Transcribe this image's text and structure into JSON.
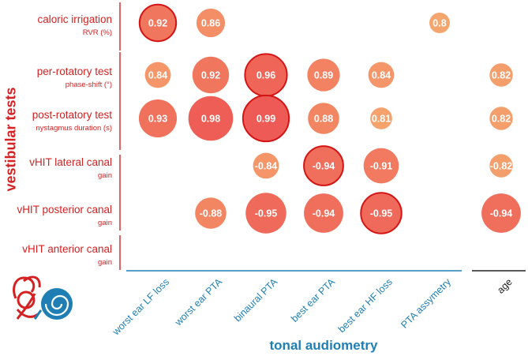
{
  "chart_data": {
    "type": "bubble-matrix",
    "title": "",
    "xlabel": "tonal audiometry",
    "ylabel": "vestibular tests",
    "columns": [
      "worst ear LF loss",
      "worst ear PTA",
      "binaural PTA",
      "best ear PTA",
      "best ear HF loss",
      "PTA assymetry",
      "age"
    ],
    "rows": [
      {
        "label": "caloric irrigation",
        "sub": "RVR (%)"
      },
      {
        "label": "per-rotatory test",
        "sub": "phase-shift (°)"
      },
      {
        "label": "post-rotatory test",
        "sub": "nystagmus duration (s)"
      },
      {
        "label": "vHIT lateral canal",
        "sub": "gain"
      },
      {
        "label": "vHIT posterior canal",
        "sub": "gain"
      },
      {
        "label": "vHIT anterior canal",
        "sub": "gain"
      }
    ],
    "cells": [
      {
        "row": 0,
        "col": 0,
        "value": 0.92,
        "label": "0.92",
        "highlight": true
      },
      {
        "row": 0,
        "col": 1,
        "value": 0.86,
        "label": "0.86",
        "highlight": false
      },
      {
        "row": 0,
        "col": 5,
        "value": 0.8,
        "label": "0.8",
        "highlight": false
      },
      {
        "row": 1,
        "col": 0,
        "value": 0.84,
        "label": "0.84",
        "highlight": false
      },
      {
        "row": 1,
        "col": 1,
        "value": 0.92,
        "label": "0.92",
        "highlight": false
      },
      {
        "row": 1,
        "col": 2,
        "value": 0.96,
        "label": "0.96",
        "highlight": true
      },
      {
        "row": 1,
        "col": 3,
        "value": 0.89,
        "label": "0.89",
        "highlight": false
      },
      {
        "row": 1,
        "col": 4,
        "value": 0.84,
        "label": "0.84",
        "highlight": false
      },
      {
        "row": 1,
        "col": 6,
        "value": 0.82,
        "label": "0.82",
        "highlight": false
      },
      {
        "row": 2,
        "col": 0,
        "value": 0.93,
        "label": "0.93",
        "highlight": false
      },
      {
        "row": 2,
        "col": 1,
        "value": 0.98,
        "label": "0.98",
        "highlight": false
      },
      {
        "row": 2,
        "col": 2,
        "value": 0.99,
        "label": "0.99",
        "highlight": true
      },
      {
        "row": 2,
        "col": 3,
        "value": 0.88,
        "label": "0.88",
        "highlight": false
      },
      {
        "row": 2,
        "col": 4,
        "value": 0.81,
        "label": "0.81",
        "highlight": false
      },
      {
        "row": 2,
        "col": 6,
        "value": 0.82,
        "label": "0.82",
        "highlight": false
      },
      {
        "row": 3,
        "col": 2,
        "value": -0.84,
        "label": "-0.84",
        "highlight": false
      },
      {
        "row": 3,
        "col": 3,
        "value": -0.94,
        "label": "-0.94",
        "highlight": true
      },
      {
        "row": 3,
        "col": 4,
        "value": -0.91,
        "label": "-0.91",
        "highlight": false
      },
      {
        "row": 3,
        "col": 6,
        "value": -0.82,
        "label": "-0.82",
        "highlight": false
      },
      {
        "row": 4,
        "col": 1,
        "value": -0.88,
        "label": "-0.88",
        "highlight": false
      },
      {
        "row": 4,
        "col": 2,
        "value": -0.95,
        "label": "-0.95",
        "highlight": false
      },
      {
        "row": 4,
        "col": 3,
        "value": -0.94,
        "label": "-0.94",
        "highlight": false
      },
      {
        "row": 4,
        "col": 4,
        "value": -0.95,
        "label": "-0.95",
        "highlight": true
      },
      {
        "row": 4,
        "col": 6,
        "value": -0.94,
        "label": "-0.94",
        "highlight": false
      }
    ],
    "size_encoding": "absolute correlation coefficient",
    "value_range": [
      0.8,
      1.0
    ]
  },
  "colors": {
    "strong": "#ee5a55",
    "weak": "#f5a66e",
    "highlight_stroke": "#d41515",
    "row_text": "#d42121",
    "col_text": "#1f7fb5",
    "age_text": "#222222"
  },
  "icon": "inner-ear-icon"
}
